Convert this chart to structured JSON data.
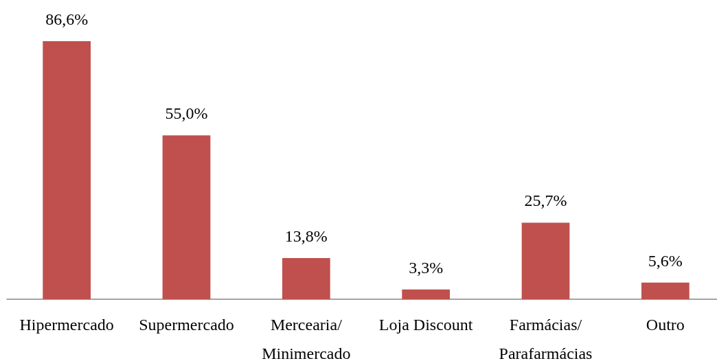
{
  "chart_data": {
    "type": "bar",
    "categories": [
      "Hipermercado",
      "Supermercado",
      "Mercearia/Minimercado",
      "Loja Discount",
      "Farmácias/Parafarmácias",
      "Outro"
    ],
    "values": [
      86.6,
      55.0,
      13.8,
      3.3,
      25.7,
      5.6
    ],
    "value_labels": [
      "86,6%",
      "55,0%",
      "13,8%",
      "3,3%",
      "25,7%",
      "5,6%"
    ],
    "color": "#c0504d"
  }
}
